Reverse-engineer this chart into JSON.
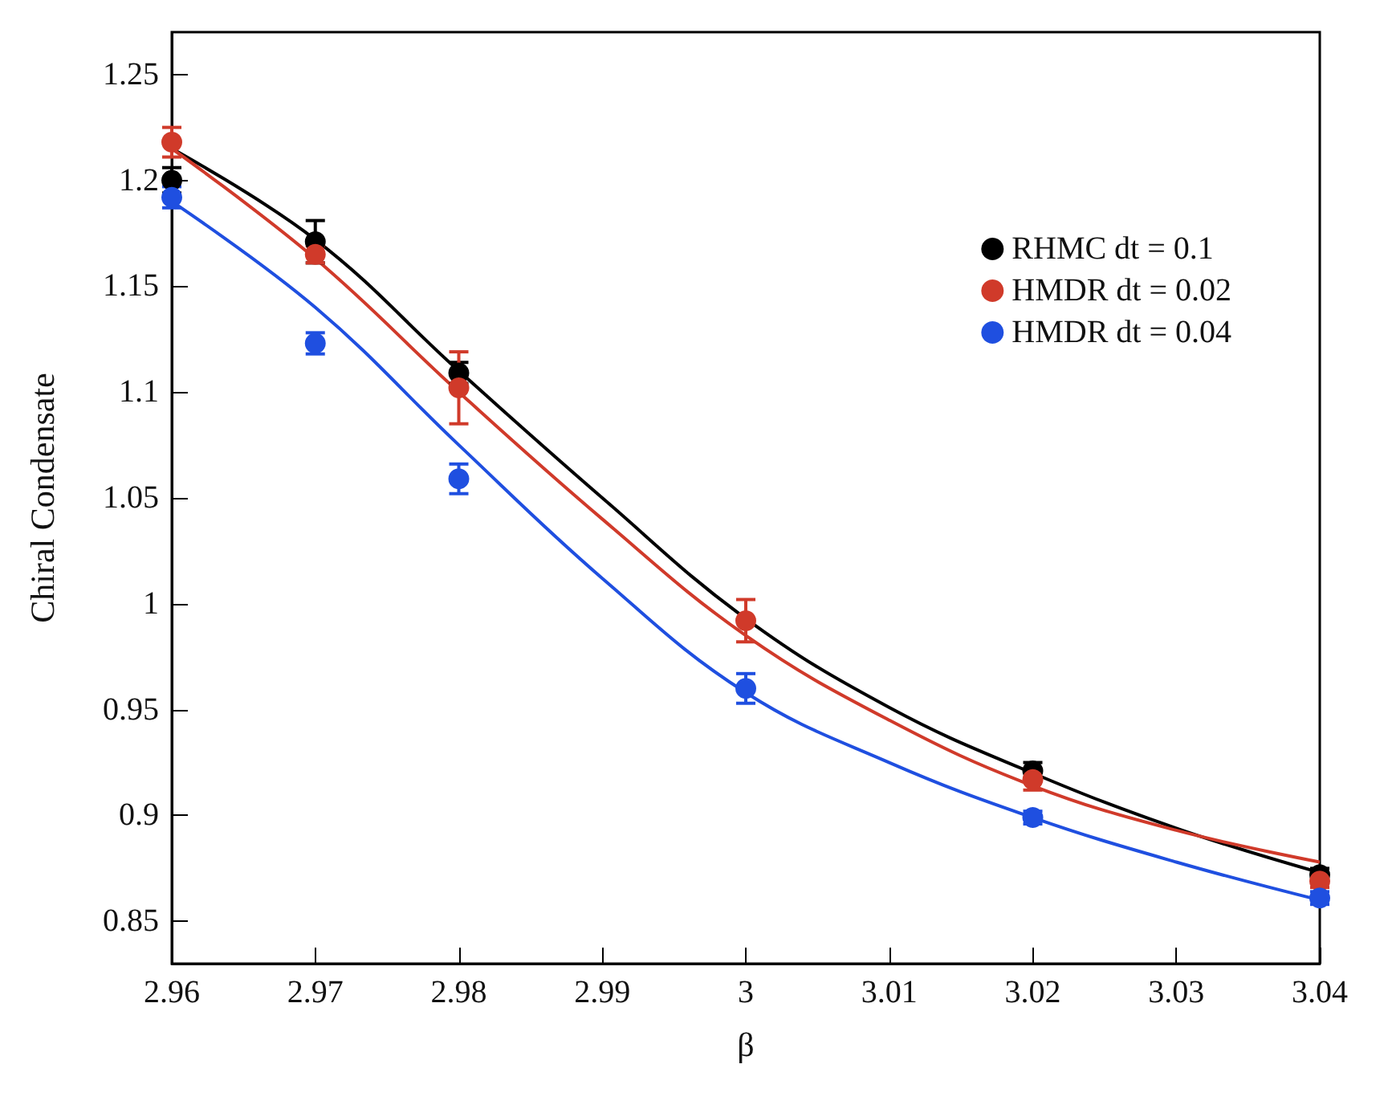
{
  "chart_data": {
    "type": "scatter",
    "xlabel": "β",
    "ylabel": "Chiral Condensate",
    "x": [
      2.96,
      2.97,
      2.98,
      3.0,
      3.02,
      3.04
    ],
    "series": [
      {
        "name": "RHMC dt = 0.1",
        "color": "#000000",
        "values": [
          1.2,
          1.171,
          1.109,
          null,
          0.921,
          0.872
        ],
        "errors": [
          0.006,
          0.01,
          0.005,
          null,
          0.004,
          0.003
        ]
      },
      {
        "name": "HMDR dt = 0.02",
        "color": "#d03a2a",
        "values": [
          1.218,
          1.165,
          1.102,
          0.992,
          0.917,
          0.869
        ],
        "errors": [
          0.007,
          0.004,
          0.017,
          0.01,
          0.005,
          0.003
        ]
      },
      {
        "name": "HMDR dt = 0.04",
        "color": "#1f4fe0",
        "values": [
          1.192,
          1.123,
          1.059,
          0.96,
          0.899,
          0.861
        ],
        "errors": [
          0.005,
          0.005,
          0.007,
          0.007,
          0.003,
          0.003
        ]
      },
      {
        "type": "line",
        "marker": "none",
        "color": "#000000",
        "x": [
          2.96,
          2.97,
          2.98,
          2.99,
          3.0,
          3.01,
          3.02,
          3.03,
          3.04
        ],
        "values": [
          1.215,
          1.172,
          1.11,
          1.05,
          0.993,
          0.951,
          0.92,
          0.894,
          0.873
        ]
      },
      {
        "type": "line",
        "marker": "none",
        "color": "#d03a2a",
        "x": [
          2.96,
          2.97,
          2.98,
          2.99,
          3.0,
          3.01,
          3.02,
          3.03,
          3.04
        ],
        "values": [
          1.215,
          1.163,
          1.1,
          1.04,
          0.985,
          0.945,
          0.914,
          0.893,
          0.878
        ]
      },
      {
        "type": "line",
        "marker": "none",
        "color": "#1f4fe0",
        "x": [
          2.96,
          2.97,
          2.98,
          2.99,
          3.0,
          3.01,
          3.02,
          3.03,
          3.04
        ],
        "values": [
          1.19,
          1.14,
          1.075,
          1.012,
          0.958,
          0.925,
          0.899,
          0.878,
          0.86
        ]
      }
    ],
    "xlim": [
      2.96,
      3.04
    ],
    "xticks": [
      2.96,
      2.97,
      2.98,
      2.99,
      3,
      3.01,
      3.02,
      3.03,
      3.04
    ],
    "ylim": [
      0.83,
      1.27
    ],
    "yticks": [
      0.85,
      0.9,
      0.95,
      1,
      1.05,
      1.1,
      1.15,
      1.2,
      1.25
    ],
    "legend": "top right",
    "marker": "circle",
    "grid": false
  }
}
